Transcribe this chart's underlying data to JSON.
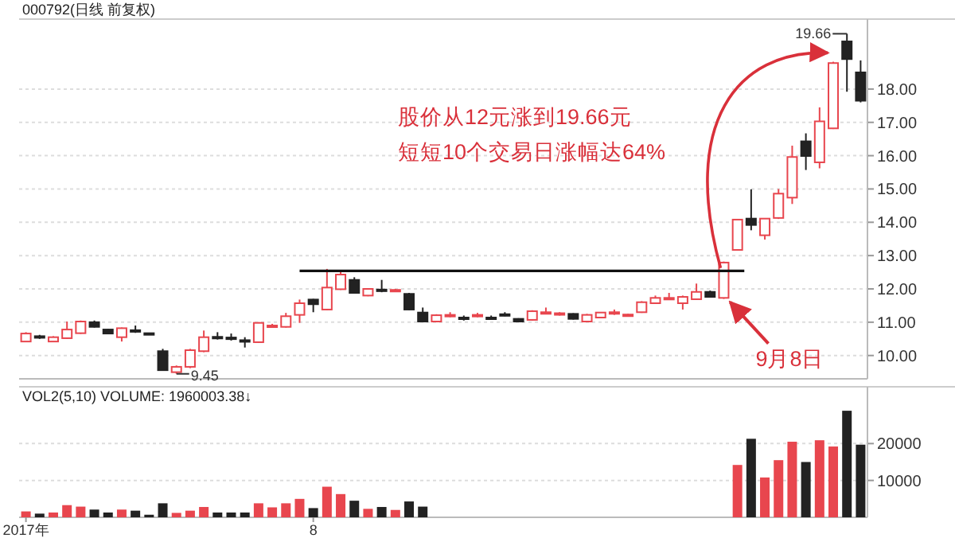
{
  "chart_data": [
    {
      "type": "candlestick",
      "title": "000792(日线 前复权)",
      "tick_labels": "y",
      "grid": "y",
      "ohlc": [
        [
          10.42,
          10.7,
          10.4,
          10.66
        ],
        [
          10.58,
          10.62,
          10.5,
          10.54
        ],
        [
          10.42,
          10.58,
          10.4,
          10.55
        ],
        [
          10.52,
          11.02,
          10.5,
          10.78
        ],
        [
          10.67,
          11.05,
          10.65,
          11.02
        ],
        [
          11.0,
          11.05,
          10.84,
          10.86
        ],
        [
          10.78,
          10.8,
          10.64,
          10.66
        ],
        [
          10.55,
          10.84,
          10.42,
          10.82
        ],
        [
          10.76,
          10.9,
          10.68,
          10.72
        ],
        [
          10.67,
          10.68,
          10.62,
          10.64
        ],
        [
          10.13,
          10.2,
          9.54,
          9.56
        ],
        [
          9.5,
          9.7,
          9.45,
          9.66
        ],
        [
          9.66,
          10.2,
          9.62,
          10.16
        ],
        [
          10.13,
          10.75,
          10.1,
          10.55
        ],
        [
          10.56,
          10.7,
          10.48,
          10.52
        ],
        [
          10.54,
          10.66,
          10.45,
          10.5
        ],
        [
          10.46,
          10.55,
          10.24,
          10.42
        ],
        [
          10.4,
          11.0,
          10.38,
          10.98
        ],
        [
          10.86,
          10.95,
          10.84,
          10.9
        ],
        [
          10.86,
          11.28,
          10.84,
          11.18
        ],
        [
          11.22,
          11.68,
          10.98,
          11.57
        ],
        [
          11.68,
          11.7,
          11.3,
          11.54
        ],
        [
          11.38,
          12.6,
          11.36,
          12.04
        ],
        [
          11.99,
          12.55,
          11.97,
          12.43
        ],
        [
          12.27,
          12.35,
          11.86,
          11.88
        ],
        [
          11.8,
          12.02,
          11.78,
          12.0
        ],
        [
          11.98,
          12.27,
          11.9,
          11.94
        ],
        [
          11.94,
          12.0,
          11.92,
          11.97
        ],
        [
          11.85,
          11.88,
          11.36,
          11.38
        ],
        [
          11.29,
          11.44,
          11.0,
          11.02
        ],
        [
          11.02,
          11.24,
          11.0,
          11.21
        ],
        [
          11.19,
          11.3,
          11.15,
          11.22
        ],
        [
          11.14,
          11.2,
          11.05,
          11.12
        ],
        [
          11.2,
          11.28,
          11.15,
          11.22
        ],
        [
          11.14,
          11.2,
          11.08,
          11.12
        ],
        [
          11.24,
          11.3,
          11.18,
          11.2
        ],
        [
          11.1,
          11.12,
          11.0,
          11.02
        ],
        [
          11.07,
          11.36,
          11.05,
          11.33
        ],
        [
          11.27,
          11.44,
          11.25,
          11.3
        ],
        [
          11.24,
          11.3,
          11.2,
          11.27
        ],
        [
          11.25,
          11.27,
          11.08,
          11.1
        ],
        [
          11.02,
          11.25,
          11.0,
          11.22
        ],
        [
          11.14,
          11.3,
          11.12,
          11.29
        ],
        [
          11.27,
          11.38,
          11.22,
          11.3
        ],
        [
          11.21,
          11.25,
          11.2,
          11.23
        ],
        [
          11.3,
          11.63,
          11.28,
          11.6
        ],
        [
          11.57,
          11.8,
          11.55,
          11.73
        ],
        [
          11.7,
          11.88,
          11.68,
          11.73
        ],
        [
          11.57,
          11.8,
          11.38,
          11.76
        ],
        [
          11.69,
          12.16,
          11.67,
          11.91
        ],
        [
          11.91,
          11.95,
          11.74,
          11.76
        ],
        [
          11.73,
          12.82,
          11.7,
          12.79
        ],
        [
          13.17,
          14.1,
          13.15,
          14.08
        ],
        [
          14.11,
          14.99,
          13.76,
          13.92
        ],
        [
          13.61,
          14.12,
          13.48,
          14.11
        ],
        [
          14.13,
          15.0,
          14.1,
          14.86
        ],
        [
          14.74,
          16.3,
          14.55,
          15.96
        ],
        [
          16.43,
          16.67,
          15.57,
          15.99
        ],
        [
          15.8,
          17.45,
          15.62,
          17.03
        ],
        [
          16.82,
          18.82,
          16.8,
          18.78
        ],
        [
          19.43,
          19.66,
          17.92,
          18.9
        ],
        [
          18.5,
          18.86,
          17.6,
          17.65
        ]
      ],
      "colors": [
        "#e8464e",
        "#222222",
        "#e8464e",
        "#e8464e",
        "#e8464e",
        "#222222",
        "#222222",
        "#e8464e",
        "#222222",
        "#222222",
        "#222222",
        "#e8464e",
        "#e8464e",
        "#e8464e",
        "#222222",
        "#222222",
        "#222222",
        "#e8464e",
        "#e8464e",
        "#e8464e",
        "#e8464e",
        "#222222",
        "#e8464e",
        "#e8464e",
        "#222222",
        "#e8464e",
        "#222222",
        "#e8464e",
        "#222222",
        "#222222",
        "#e8464e",
        "#e8464e",
        "#222222",
        "#e8464e",
        "#222222",
        "#222222",
        "#222222",
        "#e8464e",
        "#e8464e",
        "#e8464e",
        "#222222",
        "#e8464e",
        "#e8464e",
        "#e8464e",
        "#e8464e",
        "#e8464e",
        "#e8464e",
        "#e8464e",
        "#e8464e",
        "#e8464e",
        "#222222",
        "#e8464e",
        "#e8464e",
        "#222222",
        "#e8464e",
        "#e8464e",
        "#e8464e",
        "#222222",
        "#e8464e",
        "#e8464e",
        "#222222",
        "#222222"
      ],
      "ylim": [
        9.3,
        20.1
      ],
      "yticks": [
        {
          "value": 10,
          "label": "10.00"
        },
        {
          "value": 11,
          "label": "11.00"
        },
        {
          "value": 12,
          "label": "12.00"
        },
        {
          "value": 13,
          "label": "13.00"
        },
        {
          "value": 14,
          "label": "14.00"
        },
        {
          "value": 15,
          "label": "15.00"
        },
        {
          "value": 16,
          "label": "16.00"
        },
        {
          "value": 17,
          "label": "17.00"
        },
        {
          "value": 18,
          "label": "18.00"
        }
      ],
      "ref_lines": [
        {
          "axis": "y",
          "value": 12.54,
          "color": "#111111"
        }
      ],
      "annotations": [
        "股价从12元涨到19.66元",
        "短短10个交易日涨幅达64%",
        "9.45",
        "19.66",
        "9月8日"
      ]
    },
    {
      "type": "bar",
      "title": "VOL2(5,10) VOLUME: 1960003.38↓",
      "grid": "y",
      "categories": [
        "2017年",
        null,
        null,
        null,
        null,
        null,
        null,
        null,
        null,
        null,
        null,
        null,
        null,
        null,
        null,
        null,
        null,
        null,
        null,
        null,
        null,
        "8",
        null,
        null,
        null,
        null,
        null,
        null,
        null,
        null,
        null,
        null,
        null,
        null,
        null,
        null,
        null,
        null,
        null,
        null,
        null,
        null,
        null,
        null,
        null,
        null,
        null,
        null,
        null,
        null,
        null,
        null,
        null,
        null,
        null,
        null,
        null,
        null,
        null,
        null,
        null,
        null
      ],
      "values": [
        1600,
        1000,
        1300,
        3300,
        2900,
        2100,
        1300,
        2100,
        1800,
        700,
        3800,
        1200,
        1800,
        2800,
        1300,
        1300,
        1300,
        3800,
        2700,
        3800,
        5000,
        2500,
        8300,
        6300,
        4500,
        2300,
        2800,
        2000,
        4300,
        2900,
        null,
        null,
        null,
        null,
        null,
        null,
        null,
        null,
        null,
        null,
        null,
        null,
        null,
        null,
        null,
        null,
        null,
        null,
        null,
        null,
        null,
        null,
        14200,
        21300,
        10800,
        15500,
        20500,
        15000,
        20900,
        19200,
        28900,
        19700
      ],
      "colors": [
        "#e8464e",
        "#222222",
        "#e8464e",
        "#e8464e",
        "#e8464e",
        "#222222",
        "#222222",
        "#e8464e",
        "#222222",
        "#222222",
        "#222222",
        "#e8464e",
        "#e8464e",
        "#e8464e",
        "#222222",
        "#222222",
        "#222222",
        "#e8464e",
        "#e8464e",
        "#e8464e",
        "#e8464e",
        "#222222",
        "#e8464e",
        "#e8464e",
        "#222222",
        "#e8464e",
        "#222222",
        "#e8464e",
        "#222222",
        "#222222",
        null,
        null,
        null,
        null,
        null,
        null,
        null,
        null,
        null,
        null,
        null,
        null,
        null,
        null,
        null,
        null,
        null,
        null,
        null,
        null,
        null,
        null,
        "#e8464e",
        "#222222",
        "#e8464e",
        "#e8464e",
        "#e8464e",
        "#222222",
        "#e8464e",
        "#e8464e",
        "#222222",
        "#222222"
      ],
      "ylim": [
        0,
        35400
      ],
      "yticks": [
        10000,
        20000
      ]
    }
  ]
}
